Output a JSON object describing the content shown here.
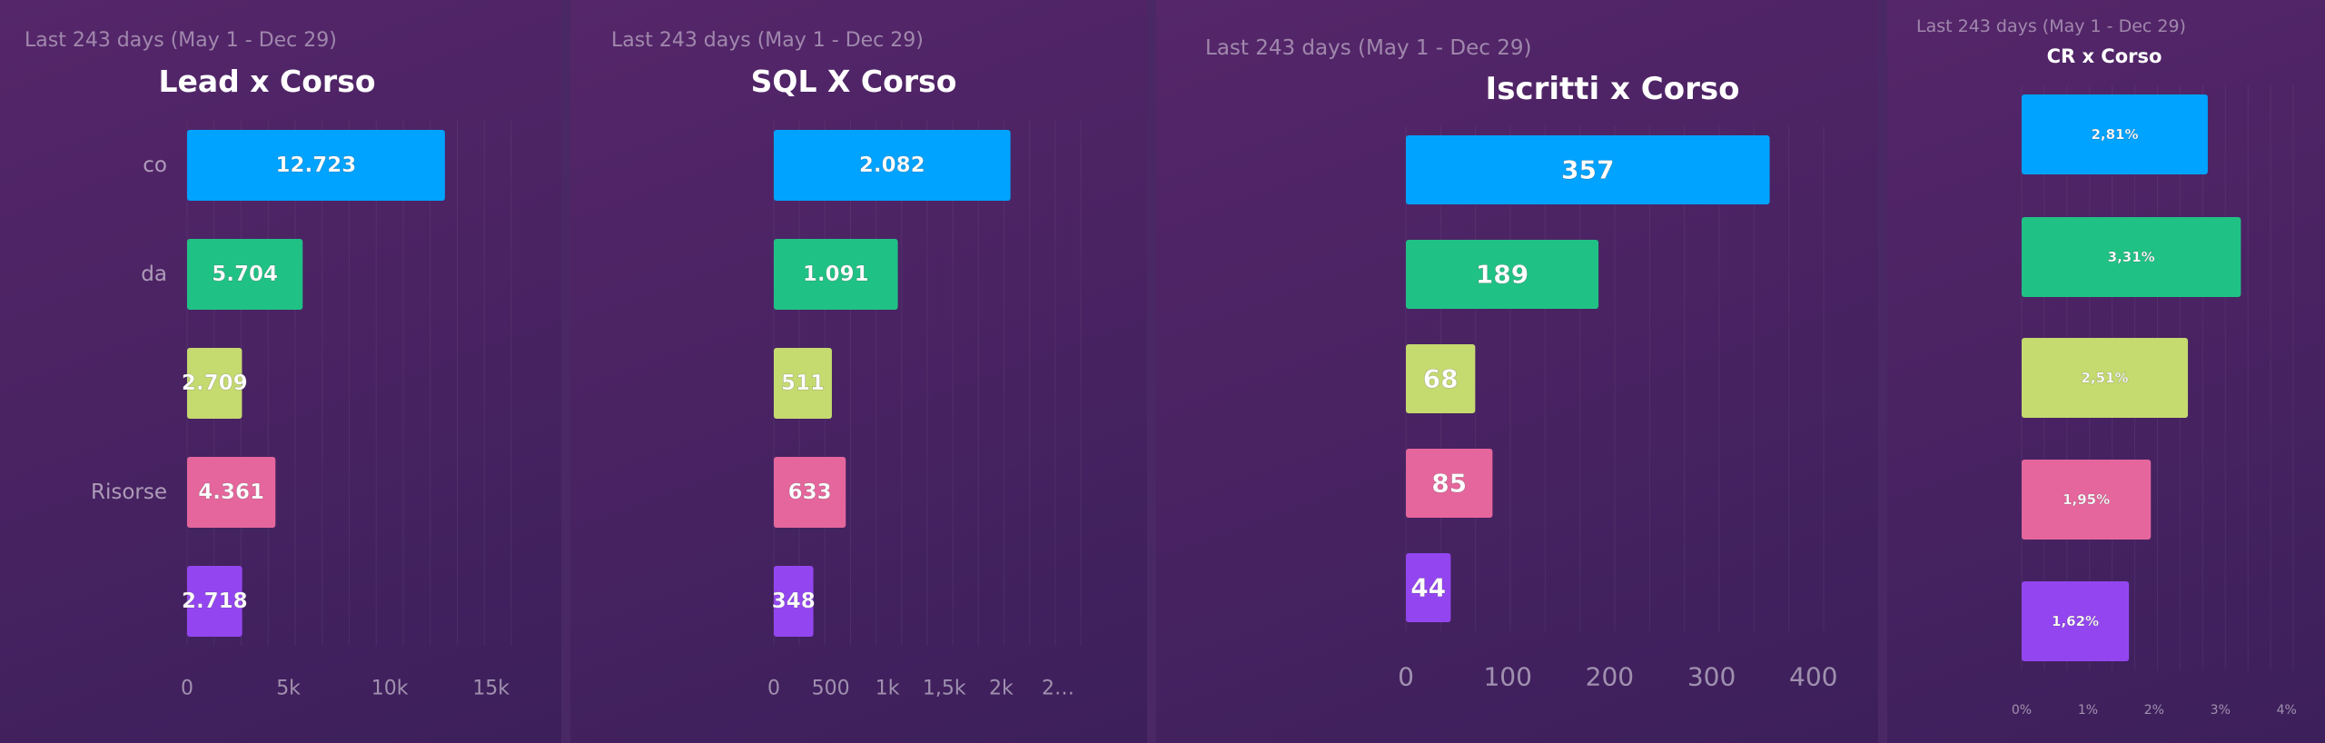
{
  "chart_data": [
    {
      "type": "bar",
      "orientation": "horizontal",
      "period": "Last 243 days (May 1 - Dec 29)",
      "title": "Lead x Corso",
      "categories": [
        "co",
        "da",
        "",
        "Risorse",
        ""
      ],
      "values": [
        12723,
        5704,
        2709,
        4361,
        2718
      ],
      "value_labels": [
        "12.723",
        "5.704",
        "2.709",
        "4.361",
        "2.718"
      ],
      "xticks": [
        "0",
        "5k",
        "10k",
        "15k"
      ],
      "xtick_values": [
        0,
        5000,
        10000,
        15000
      ],
      "xlim": [
        0,
        16000
      ],
      "grid": true
    },
    {
      "type": "bar",
      "orientation": "horizontal",
      "period": "Last 243 days (May 1 - Dec 29)",
      "title": "SQL X Corso",
      "categories": [
        "",
        "",
        "",
        "",
        ""
      ],
      "values": [
        2082,
        1091,
        511,
        633,
        348
      ],
      "value_labels": [
        "2.082",
        "1.091",
        "511",
        "633",
        "348"
      ],
      "xticks": [
        "0",
        "500",
        "1k",
        "1,5k",
        "2k",
        "2…"
      ],
      "xtick_values": [
        0,
        500,
        1000,
        1500,
        2000,
        2500
      ],
      "xlim": [
        0,
        2700
      ],
      "grid": true
    },
    {
      "type": "bar",
      "orientation": "horizontal",
      "period": "Last 243 days (May 1 - Dec 29)",
      "title": "Iscritti x Corso",
      "categories": [
        "",
        "",
        "",
        "",
        ""
      ],
      "values": [
        357,
        189,
        68,
        85,
        44
      ],
      "value_labels": [
        "357",
        "189",
        "68",
        "85",
        "44"
      ],
      "xticks": [
        "0",
        "100",
        "200",
        "300",
        "400"
      ],
      "xtick_values": [
        0,
        100,
        200,
        300,
        400
      ],
      "xlim": [
        0,
        410
      ],
      "grid": true
    },
    {
      "type": "bar",
      "orientation": "horizontal",
      "period": "Last 243 days (May 1 - Dec 29)",
      "title": "CR x Corso",
      "categories": [
        "",
        "",
        "",
        "",
        ""
      ],
      "values": [
        2.81,
        3.31,
        2.51,
        1.95,
        1.62
      ],
      "value_labels": [
        "2,81%",
        "3,31%",
        "2,51%",
        "1,95%",
        "1,62%"
      ],
      "xticks": [
        "0%",
        "1%",
        "2%",
        "3%",
        "4%"
      ],
      "xtick_values": [
        0,
        1,
        2,
        3,
        4
      ],
      "xlim": [
        0,
        4.1
      ],
      "grid": true
    }
  ],
  "colors": [
    "#00a3ff",
    "#20c185",
    "#c5da6f",
    "#e5669c",
    "#9346f0"
  ]
}
